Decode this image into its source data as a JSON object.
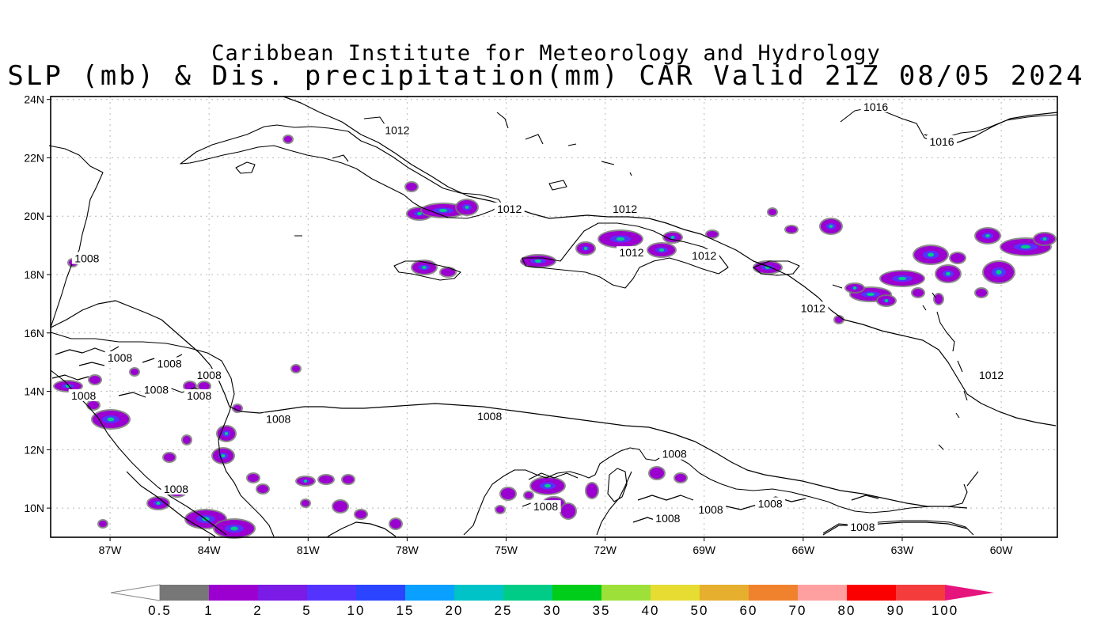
{
  "title": {
    "line1": "Caribbean Institute for Meteorology and Hydrology",
    "line2": "SLP (mb) & Dis. precipitation(mm) CAR Valid 21Z 08/05 2024"
  },
  "map": {
    "lon_range": [
      -88.8,
      -58.3
    ],
    "lat_range": [
      9.0,
      24.1
    ],
    "lat_ticks": [
      "24N",
      "22N",
      "20N",
      "18N",
      "16N",
      "14N",
      "12N",
      "10N"
    ],
    "lon_ticks": [
      "87W",
      "84W",
      "81W",
      "78W",
      "75W",
      "72W",
      "69W",
      "66W",
      "63W",
      "60W"
    ],
    "grid": true
  },
  "isobar_labels": [
    {
      "text": "1016",
      "lon": -63.8,
      "lat": 23.7
    },
    {
      "text": "1016",
      "lon": -61.8,
      "lat": 22.5
    },
    {
      "text": "1012",
      "lon": -78.3,
      "lat": 22.9
    },
    {
      "text": "1012",
      "lon": -74.9,
      "lat": 20.2
    },
    {
      "text": "1012",
      "lon": -71.4,
      "lat": 20.2
    },
    {
      "text": "1012",
      "lon": -71.2,
      "lat": 18.7
    },
    {
      "text": "1012",
      "lon": -69.0,
      "lat": 18.6
    },
    {
      "text": "1012",
      "lon": -65.7,
      "lat": 16.8
    },
    {
      "text": "1012",
      "lon": -60.3,
      "lat": 14.5
    },
    {
      "text": "1008",
      "lon": -87.7,
      "lat": 18.5
    },
    {
      "text": "1008",
      "lon": -86.7,
      "lat": 15.1
    },
    {
      "text": "1008",
      "lon": -85.2,
      "lat": 14.9
    },
    {
      "text": "1008",
      "lon": -84.0,
      "lat": 14.5
    },
    {
      "text": "1008",
      "lon": -85.6,
      "lat": 14.0
    },
    {
      "text": "1008",
      "lon": -84.3,
      "lat": 13.8
    },
    {
      "text": "1008",
      "lon": -87.8,
      "lat": 13.8
    },
    {
      "text": "1008",
      "lon": -81.9,
      "lat": 13.0
    },
    {
      "text": "1008",
      "lon": -75.5,
      "lat": 13.1
    },
    {
      "text": "1008",
      "lon": -69.9,
      "lat": 11.8
    },
    {
      "text": "1008",
      "lon": -85.0,
      "lat": 10.6
    },
    {
      "text": "1008",
      "lon": -73.8,
      "lat": 10.0
    },
    {
      "text": "1008",
      "lon": -68.8,
      "lat": 9.9
    },
    {
      "text": "1008",
      "lon": -70.1,
      "lat": 9.6
    },
    {
      "text": "1008",
      "lon": -67.0,
      "lat": 10.1
    },
    {
      "text": "1008",
      "lon": -64.2,
      "lat": 9.3
    }
  ],
  "colorbar": {
    "labels": [
      "0.5",
      "1",
      "2",
      "5",
      "10",
      "15",
      "20",
      "25",
      "30",
      "35",
      "40",
      "50",
      "60",
      "70",
      "80",
      "90",
      "100"
    ],
    "colors": [
      "#777777",
      "#9b00d1",
      "#7a1be6",
      "#5533ff",
      "#2a44ff",
      "#0aa0ff",
      "#00c3c8",
      "#00cc88",
      "#00cc1a",
      "#9ee03a",
      "#e6dc32",
      "#e6af2d",
      "#f0822d",
      "#ffa0a0",
      "#fa0000",
      "#f53c3c",
      "#e6147d"
    ]
  },
  "colors": {
    "precip_light": "#777777",
    "precip_core": "#9b00d1",
    "precip_mid": "#5533ff",
    "precip_high": "#00cc88"
  }
}
